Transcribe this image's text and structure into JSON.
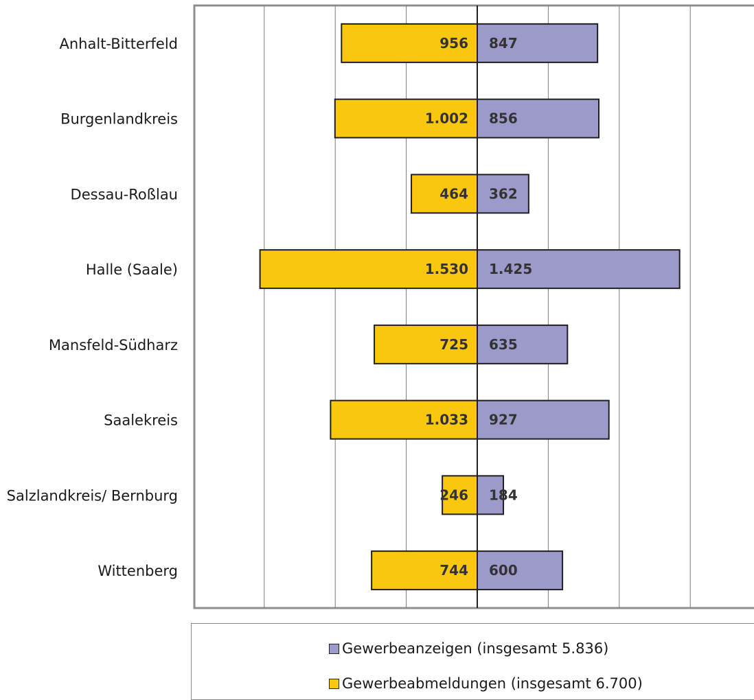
{
  "chart_data": {
    "type": "bar",
    "orientation": "horizontal-diverging",
    "title": "",
    "xlabel": "",
    "ylabel": "",
    "categories": [
      "Anhalt-Bitterfeld",
      "Burgenlandkreis",
      "Dessau-Roßlau",
      "Halle (Saale)",
      "Mansfeld-Südharz",
      "Saalekreis",
      "Salzlandkreis/ Bernburg",
      "Wittenberg"
    ],
    "series": [
      {
        "name": "Gewerbeanzeigen (insgesamt 5.836)",
        "side": "right",
        "color": "#9c9acb",
        "values": [
          847,
          856,
          362,
          1425,
          635,
          927,
          184,
          600
        ],
        "labels": [
          "847",
          "856",
          "362",
          "1.425",
          "635",
          "927",
          "184",
          "600"
        ]
      },
      {
        "name": "Gewerbeabmeldungen (insgesamt 6.700)",
        "side": "left",
        "color": "#f9c80e",
        "values": [
          956,
          1002,
          464,
          1530,
          725,
          1033,
          246,
          744
        ],
        "labels": [
          "956",
          "1.002",
          "464",
          "1.530",
          "725",
          "1.033",
          "246",
          "744"
        ]
      }
    ],
    "xlim": [
      -2000,
      2000
    ],
    "grid": true,
    "gridline_step": 500,
    "legend_position": "bottom"
  },
  "legend": {
    "items": [
      {
        "label": "Gewerbeanzeigen (insgesamt 5.836)",
        "color": "#9c9acb"
      },
      {
        "label": "Gewerbeabmeldungen (insgesamt 6.700)",
        "color": "#f9c80e"
      }
    ]
  }
}
